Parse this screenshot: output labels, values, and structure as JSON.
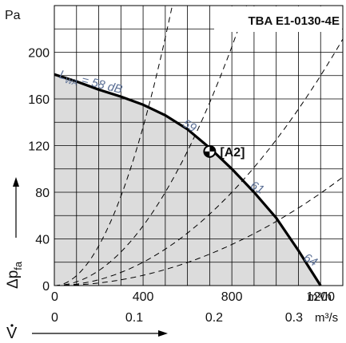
{
  "chart_data": {
    "type": "line",
    "title": "TBA E1-0130-4E",
    "y_unit": "Pa",
    "y_label": "Δp",
    "y_label_sub": "fa",
    "x_label": "V",
    "x_unit_top": "m³/h",
    "x_unit_bottom": "m³/s",
    "xlim": [
      0,
      1300
    ],
    "ylim": [
      0,
      240
    ],
    "x_ticks_top": [
      0,
      400,
      800,
      1200
    ],
    "x_tick_labels_top": [
      "0",
      "400",
      "800",
      "1200"
    ],
    "x_ticks_bottom_pos": [
      0,
      360,
      720,
      1080
    ],
    "x_tick_labels_bottom": [
      "0",
      "0.1",
      "0.2",
      "0.3"
    ],
    "y_ticks": [
      0,
      40,
      80,
      120,
      160,
      200
    ],
    "y_tick_labels": [
      "0",
      "40",
      "80",
      "120",
      "160",
      "200"
    ],
    "grid": true,
    "fan_curve": {
      "name": "fan curve",
      "x": [
        0,
        100,
        200,
        300,
        400,
        500,
        600,
        700,
        800,
        900,
        1000,
        1100,
        1150,
        1200
      ],
      "y": [
        181,
        175,
        168,
        162,
        155,
        146,
        134,
        118,
        100,
        80,
        58,
        30,
        15,
        0
      ]
    },
    "system_curves": [
      {
        "name": "1",
        "k": 0.00085
      },
      {
        "name": "2",
        "k": 0.00032
      },
      {
        "name": "3",
        "k": 0.000125
      },
      {
        "name": "4",
        "k": 5.5e-05
      }
    ],
    "operating_point": {
      "label": "[A2]",
      "x": 700,
      "y": 115
    },
    "noise_labels": [
      {
        "text_main": "L",
        "text_sub": "WA",
        "text_rest": " = 58 dB",
        "x": 20,
        "y": 178
      },
      {
        "text": "59",
        "x": 575,
        "y": 137
      },
      {
        "text": "61",
        "x": 880,
        "y": 84
      },
      {
        "text": "64",
        "x": 1120,
        "y": 22
      }
    ]
  }
}
